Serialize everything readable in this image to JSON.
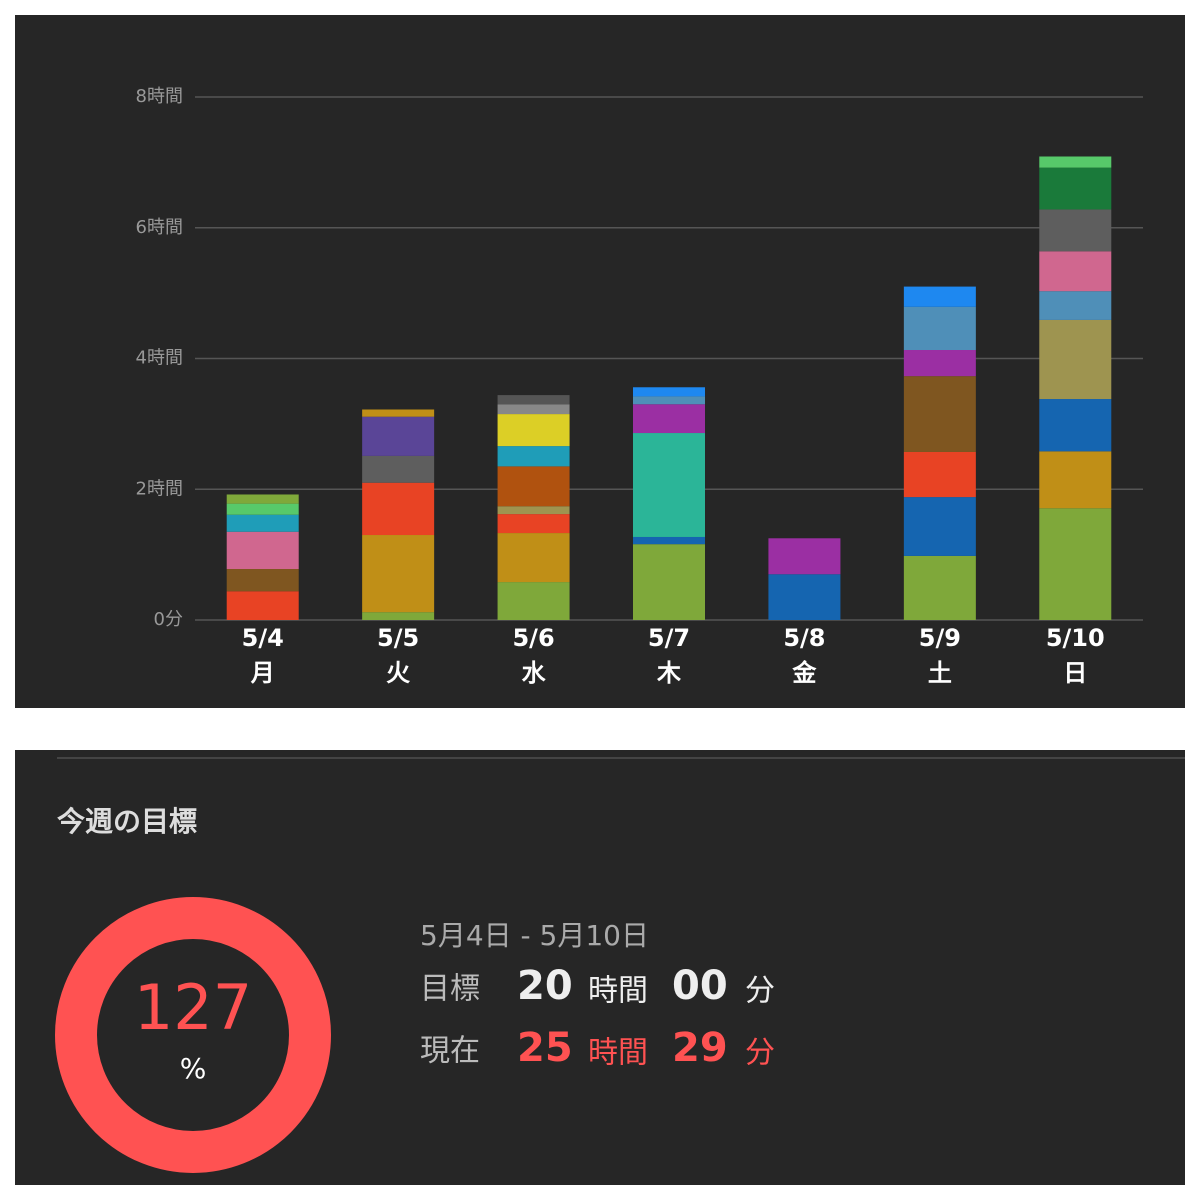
{
  "chart_data": {
    "type": "stacked_bar",
    "categories": [
      "5/4",
      "5/5",
      "5/6",
      "5/7",
      "5/8",
      "5/9",
      "5/10"
    ],
    "weekdays": [
      "月",
      "火",
      "水",
      "木",
      "金",
      "土",
      "日"
    ],
    "ylim": [
      0,
      8
    ],
    "yticks": [
      {
        "value": 0,
        "label": "0分"
      },
      {
        "value": 2,
        "label": "2時間"
      },
      {
        "value": 4,
        "label": "4時間"
      },
      {
        "value": 6,
        "label": "6時間"
      },
      {
        "value": 8,
        "label": "8時間"
      }
    ],
    "grid": true,
    "stacks": [
      [
        {
          "value": 0.44,
          "color": "#e84324"
        },
        {
          "value": 0.34,
          "color": "#7f5620"
        },
        {
          "value": 0.57,
          "color": "#d0678f"
        },
        {
          "value": 0.26,
          "color": "#1f9db8"
        },
        {
          "value": 0.17,
          "color": "#57c96a"
        },
        {
          "value": 0.14,
          "color": "#7fa83a"
        }
      ],
      [
        {
          "value": 0.12,
          "color": "#7fa83a"
        },
        {
          "value": 1.18,
          "color": "#c08f17"
        },
        {
          "value": 0.8,
          "color": "#e84324"
        },
        {
          "value": 0.41,
          "color": "#5e5e5e"
        },
        {
          "value": 0.6,
          "color": "#5a4597"
        },
        {
          "value": 0.11,
          "color": "#c08f17"
        }
      ],
      [
        {
          "value": 0.58,
          "color": "#7fa83a"
        },
        {
          "value": 0.75,
          "color": "#c08f17"
        },
        {
          "value": 0.29,
          "color": "#e84324"
        },
        {
          "value": 0.12,
          "color": "#9e9450"
        },
        {
          "value": 0.61,
          "color": "#b0520f"
        },
        {
          "value": 0.31,
          "color": "#1f9db8"
        },
        {
          "value": 0.49,
          "color": "#dccf26"
        },
        {
          "value": 0.15,
          "color": "#888888"
        },
        {
          "value": 0.14,
          "color": "#555555"
        }
      ],
      [
        {
          "value": 1.16,
          "color": "#7fa83a"
        },
        {
          "value": 0.11,
          "color": "#1565b0"
        },
        {
          "value": 1.59,
          "color": "#2bb598"
        },
        {
          "value": 0.44,
          "color": "#9b2fa3"
        },
        {
          "value": 0.12,
          "color": "#4f8fb8"
        },
        {
          "value": 0.14,
          "color": "#1e88f0"
        }
      ],
      [
        {
          "value": 0.7,
          "color": "#1565b0"
        },
        {
          "value": 0.55,
          "color": "#9b2fa3"
        }
      ],
      [
        {
          "value": 0.98,
          "color": "#7fa83a"
        },
        {
          "value": 0.9,
          "color": "#1565b0"
        },
        {
          "value": 0.69,
          "color": "#e84324"
        },
        {
          "value": 1.16,
          "color": "#7f5620"
        },
        {
          "value": 0.4,
          "color": "#9b2fa3"
        },
        {
          "value": 0.66,
          "color": "#4f8fb8"
        },
        {
          "value": 0.31,
          "color": "#1e88f0"
        }
      ],
      [
        {
          "value": 1.71,
          "color": "#7fa83a"
        },
        {
          "value": 0.87,
          "color": "#c08f17"
        },
        {
          "value": 0.8,
          "color": "#1565b0"
        },
        {
          "value": 1.21,
          "color": "#9e9450"
        },
        {
          "value": 0.44,
          "color": "#4f8fb8"
        },
        {
          "value": 0.61,
          "color": "#d0678f"
        },
        {
          "value": 0.64,
          "color": "#5e5e5e"
        },
        {
          "value": 0.64,
          "color": "#1a7a3a"
        },
        {
          "value": 0.17,
          "color": "#57c96a"
        }
      ]
    ]
  },
  "goal": {
    "title": "今週の目標",
    "percent": 127,
    "percent_unit": "%",
    "color": "#ff5252",
    "range": "5月4日 - 5月10日",
    "target": {
      "label": "目標",
      "hours": "20",
      "hours_unit": "時間",
      "minutes": "00",
      "minutes_unit": "分"
    },
    "current": {
      "label": "現在",
      "hours": "25",
      "hours_unit": "時間",
      "minutes": "29",
      "minutes_unit": "分"
    }
  }
}
